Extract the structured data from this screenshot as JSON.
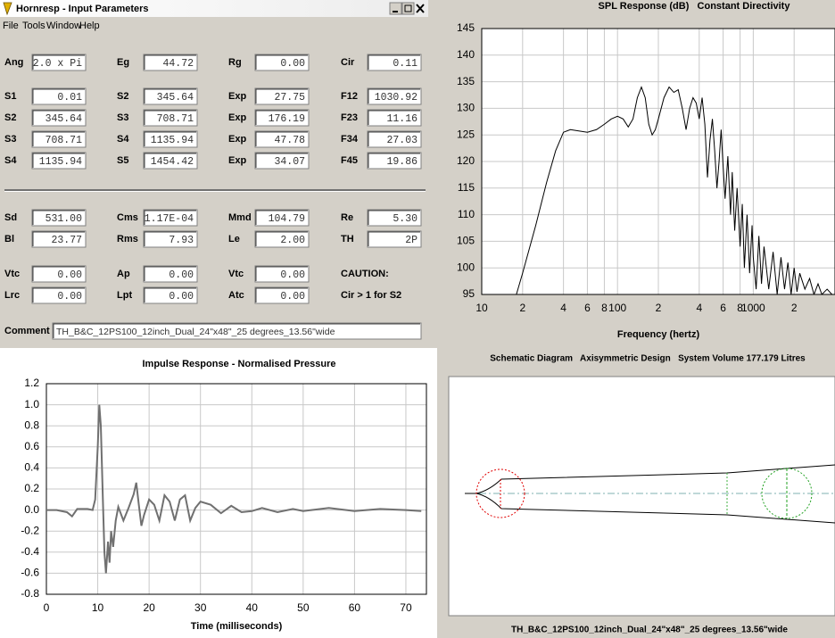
{
  "window_title": "Hornresp - Input Parameters",
  "menu": [
    "File",
    "Tools",
    "Window",
    "Help"
  ],
  "params": {
    "rows": [
      [
        {
          "label": "Ang",
          "value": "2.0 x Pi"
        },
        {
          "label": "Eg",
          "value": "44.72"
        },
        {
          "label": "Rg",
          "value": "0.00"
        },
        {
          "label": "Cir",
          "value": "0.11"
        }
      ],
      [
        {
          "label": "S1",
          "value": "0.01"
        },
        {
          "label": "S2",
          "value": "345.64"
        },
        {
          "label": "Exp",
          "value": "27.75"
        },
        {
          "label": "F12",
          "value": "1030.92"
        }
      ],
      [
        {
          "label": "S2",
          "value": "345.64"
        },
        {
          "label": "S3",
          "value": "708.71"
        },
        {
          "label": "Exp",
          "value": "176.19"
        },
        {
          "label": "F23",
          "value": "11.16"
        }
      ],
      [
        {
          "label": "S3",
          "value": "708.71"
        },
        {
          "label": "S4",
          "value": "1135.94"
        },
        {
          "label": "Exp",
          "value": "47.78"
        },
        {
          "label": "F34",
          "value": "27.03"
        }
      ],
      [
        {
          "label": "S4",
          "value": "1135.94"
        },
        {
          "label": "S5",
          "value": "1454.42"
        },
        {
          "label": "Exp",
          "value": "34.07"
        },
        {
          "label": "F45",
          "value": "19.86"
        }
      ],
      [
        {
          "label": "Sd",
          "value": "531.00"
        },
        {
          "label": "Cms",
          "value": "1.17E-04"
        },
        {
          "label": "Mmd",
          "value": "104.79"
        },
        {
          "label": "Re",
          "value": "5.30"
        }
      ],
      [
        {
          "label": "Bl",
          "value": "23.77"
        },
        {
          "label": "Rms",
          "value": "7.93"
        },
        {
          "label": "Le",
          "value": "2.00"
        },
        {
          "label": "TH",
          "value": "2P",
          "color": "#e00000"
        }
      ],
      [
        {
          "label": "Vtc",
          "value": "0.00"
        },
        {
          "label": "Ap",
          "value": "0.00"
        },
        {
          "label": "Vtc",
          "value": "0.00"
        },
        {
          "label": "CAUTION:",
          "color": "#e00000"
        }
      ],
      [
        {
          "label": "Lrc",
          "value": "0.00"
        },
        {
          "label": "Lpt",
          "value": "0.00"
        },
        {
          "label": "Atc",
          "value": "0.00"
        },
        {
          "label": "Cir > 1 for S2",
          "color": "#e00000"
        }
      ]
    ],
    "comment_label": "Comment",
    "comment": "TH_B&C_12PS100_12inch_Dual_24\"x48\"_25 degrees_13.56\"wide"
  },
  "chart_data": [
    {
      "type": "line",
      "title": "SPL Response (dB)   Constant Directivity",
      "x_label": "Frequency (hertz)",
      "xscale": "log",
      "grid": true,
      "xlim": [
        10,
        4000
      ],
      "xticks": [
        10,
        {
          "value": 20,
          "label": "2"
        },
        {
          "value": 40,
          "label": "4"
        },
        {
          "value": 60,
          "label": "6"
        },
        {
          "value": 80,
          "label": "8"
        },
        100,
        {
          "value": 200,
          "label": "2"
        },
        {
          "value": 400,
          "label": "4"
        },
        {
          "value": 600,
          "label": "6"
        },
        {
          "value": 800,
          "label": "8"
        },
        1000,
        {
          "value": 2000,
          "label": "2"
        }
      ],
      "ylim": [
        95,
        145
      ],
      "yticks": [
        95,
        100,
        105,
        110,
        115,
        120,
        125,
        130,
        135,
        140,
        145
      ],
      "x": [
        18,
        20,
        25,
        30,
        35,
        40,
        45,
        50,
        60,
        70,
        80,
        90,
        100,
        110,
        120,
        130,
        140,
        150,
        160,
        170,
        180,
        190,
        200,
        220,
        240,
        260,
        280,
        300,
        320,
        340,
        360,
        380,
        400,
        420,
        440,
        460,
        480,
        500,
        520,
        540,
        560,
        580,
        600,
        620,
        650,
        680,
        700,
        730,
        760,
        800,
        830,
        860,
        900,
        940,
        980,
        1000,
        1050,
        1100,
        1150,
        1200,
        1300,
        1400,
        1500,
        1600,
        1700,
        1800,
        1900,
        2000,
        2100,
        2200,
        2400,
        2600,
        2800,
        3000,
        3200,
        3500,
        3800
      ],
      "series": [
        {
          "color": "#000000",
          "width": 1,
          "values": [
            95,
            99,
            108,
            116,
            122,
            125.5,
            126,
            125.8,
            125.5,
            126,
            127,
            128,
            128.5,
            128,
            126.5,
            128,
            132,
            134,
            132,
            127,
            125,
            126,
            128,
            132,
            134,
            133,
            133.5,
            130,
            126,
            130,
            132,
            131,
            128,
            132,
            127,
            117,
            124,
            128,
            122,
            115,
            120,
            126,
            119,
            113,
            121,
            110,
            118,
            107,
            115,
            104,
            112,
            100,
            110,
            99,
            108,
            102,
            96,
            106,
            97,
            104,
            96,
            103,
            95,
            102,
            96,
            101,
            95,
            100,
            95.5,
            99,
            96,
            98,
            95,
            97,
            95,
            96,
            95
          ]
        }
      ]
    },
    {
      "type": "line",
      "title": "Impulse Response - Normalised Pressure",
      "x_label": "Time (milliseconds)",
      "grid": true,
      "xlim": [
        0,
        74
      ],
      "xticks": [
        0,
        10,
        20,
        30,
        40,
        50,
        60,
        70
      ],
      "ylim": [
        -0.8,
        1.2
      ],
      "yticks": [
        1.2,
        {
          "value": 1,
          "label": "1.0"
        },
        0.8,
        0.6,
        0.4,
        0.2,
        {
          "value": 0,
          "label": "0.0"
        },
        -0.2,
        -0.4,
        -0.6,
        -0.8
      ],
      "x": [
        0,
        2,
        4,
        5,
        6,
        7,
        8,
        9,
        9.5,
        10,
        10.3,
        10.6,
        11,
        11.3,
        11.6,
        12,
        12.3,
        12.6,
        13,
        13.5,
        14,
        15,
        16,
        17,
        17.5,
        18,
        18.5,
        19,
        20,
        21,
        22,
        23,
        24,
        25,
        26,
        27,
        28,
        29,
        30,
        32,
        34,
        36,
        38,
        40,
        42,
        45,
        48,
        50,
        55,
        60,
        65,
        70,
        73
      ],
      "series": [
        {
          "color": "#707070",
          "width": 2,
          "values": [
            0,
            0,
            -0.02,
            -0.06,
            0.01,
            0.01,
            0.01,
            0,
            0.1,
            0.6,
            1.0,
            0.8,
            0.1,
            -0.4,
            -0.6,
            -0.3,
            -0.5,
            -0.2,
            -0.35,
            -0.1,
            0.03,
            -0.1,
            0.02,
            0.15,
            0.26,
            0.05,
            -0.15,
            -0.05,
            0.1,
            0.05,
            -0.1,
            0.14,
            0.08,
            -0.1,
            0.1,
            0.14,
            -0.1,
            0.02,
            0.08,
            0.05,
            -0.03,
            0.04,
            -0.02,
            -0.01,
            0.02,
            -0.02,
            0.01,
            -0.01,
            0.02,
            -0.01,
            0.01,
            0,
            -0.01
          ]
        }
      ]
    }
  ],
  "schematic": {
    "caption": "Schematic Diagram   Axisymmetric Design   System Volume 177.179 Litres",
    "comment": "TH_B&C_12PS100_12inch_Dual_24\"x48\"_25 degrees_13.56\"wide"
  }
}
